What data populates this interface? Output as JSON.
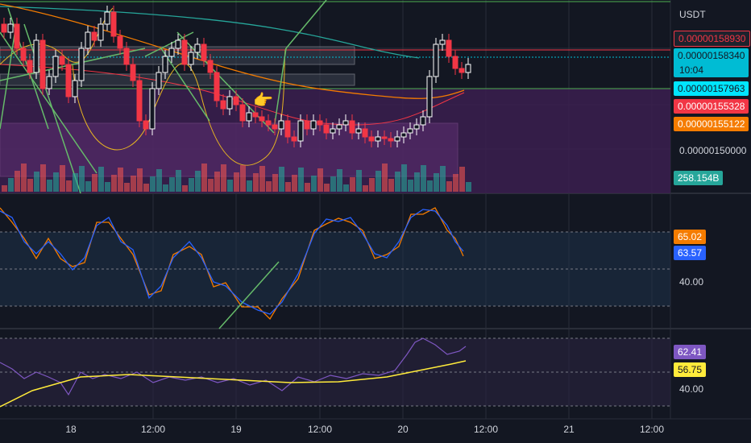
{
  "price_axis": {
    "currency": "USDT",
    "tags": [
      {
        "name": "price-tag-high",
        "text": "0.00000158930",
        "bg": "#1e222d",
        "fg": "#f23645",
        "border": "#f23645"
      },
      {
        "name": "price-tag-last",
        "text": "0.00000158340",
        "bg": "#00bcd4",
        "fg": "#131722"
      },
      {
        "name": "price-tag-level-green",
        "text": "0.00000157963",
        "bg": "#00e5ff",
        "fg": "#131722"
      },
      {
        "name": "price-tag-red",
        "text": "0.00000155328",
        "bg": "#f23645",
        "fg": "#ffffff"
      },
      {
        "name": "price-tag-orange",
        "text": "0.00000155122",
        "bg": "#f57c00",
        "fg": "#ffffff"
      },
      {
        "name": "price-tag-volume",
        "text": "258.154B",
        "bg": "#26a69a",
        "fg": "#ffffff"
      }
    ],
    "countdown": "10:04",
    "static_labels": [
      "0.00000150000"
    ]
  },
  "stoch_panel": {
    "k_value": "65.02",
    "d_value": "63.57",
    "k_color": "#f57c00",
    "d_color": "#2962ff",
    "level_label": "40.00"
  },
  "rsi_panel": {
    "rsi_value": "62.41",
    "ma_value": "56.75",
    "rsi_color": "#7e57c2",
    "ma_color": "#ffeb3b",
    "level_label": "40.00"
  },
  "time_axis": [
    "18",
    "12:00",
    "19",
    "12:00",
    "20",
    "12:00",
    "21",
    "12:00"
  ],
  "colors": {
    "up": "#ffffff",
    "down": "#f23645",
    "background": "#131722",
    "zone": "#4a2460"
  },
  "annotations": {
    "pointer_icon": "pointing-hand-icon"
  }
}
